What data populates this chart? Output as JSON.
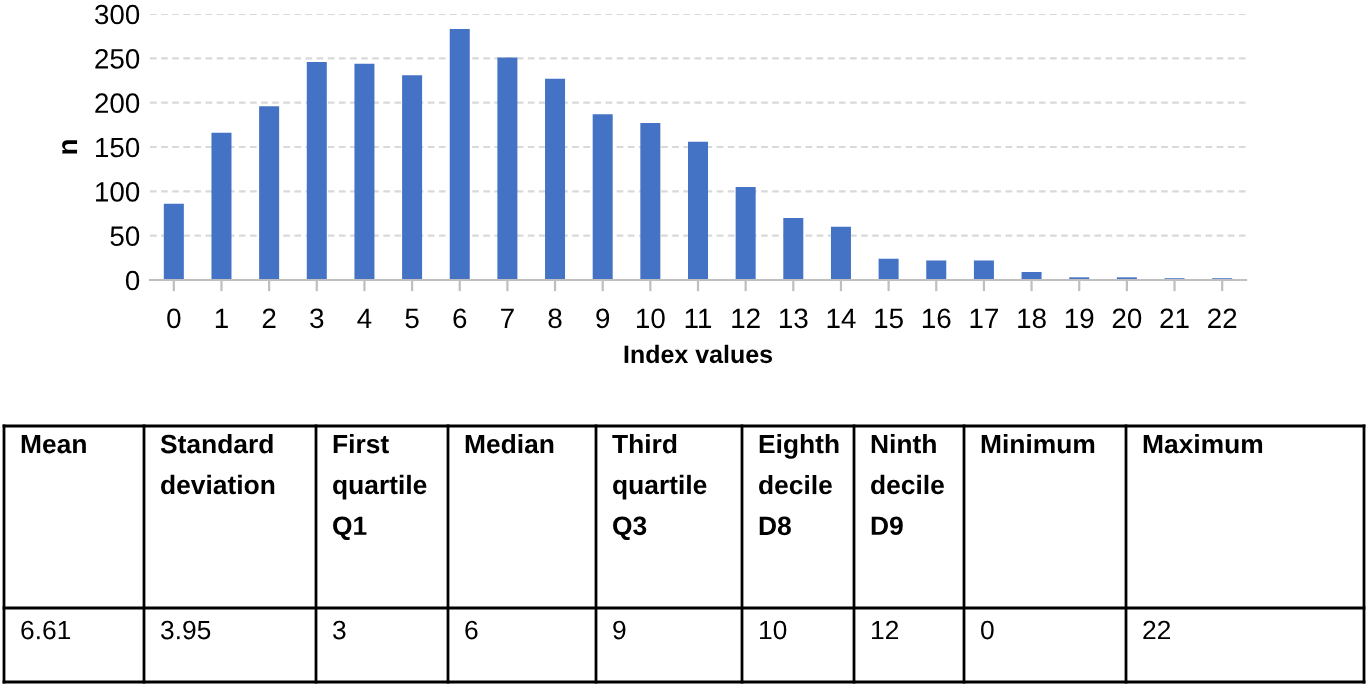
{
  "chart_data": {
    "type": "bar",
    "xlabel": "Index values",
    "ylabel": "n",
    "categories": [
      "0",
      "1",
      "2",
      "3",
      "4",
      "5",
      "6",
      "7",
      "8",
      "9",
      "10",
      "11",
      "12",
      "13",
      "14",
      "15",
      "16",
      "17",
      "18",
      "19",
      "20",
      "21",
      "22"
    ],
    "values": [
      86,
      166,
      196,
      246,
      244,
      231,
      283,
      251,
      227,
      187,
      177,
      156,
      105,
      70,
      60,
      24,
      22,
      22,
      9,
      3,
      3,
      2,
      2
    ],
    "color": "#4472c4",
    "ylim": [
      0,
      300
    ],
    "yticks": [
      0,
      50,
      100,
      150,
      200,
      250,
      300
    ],
    "grid": "y",
    "legend": false,
    "annotations": [
      "Mean",
      "Standard deviation",
      "First quartile Q1",
      "Median",
      "Third quartile Q3",
      "Eighth decile D8",
      "Ninth decile D9",
      "Minimum",
      "Maximum",
      "6.61",
      "3.95",
      "3",
      "6",
      "9",
      "10",
      "12",
      "0",
      "22"
    ]
  }
}
